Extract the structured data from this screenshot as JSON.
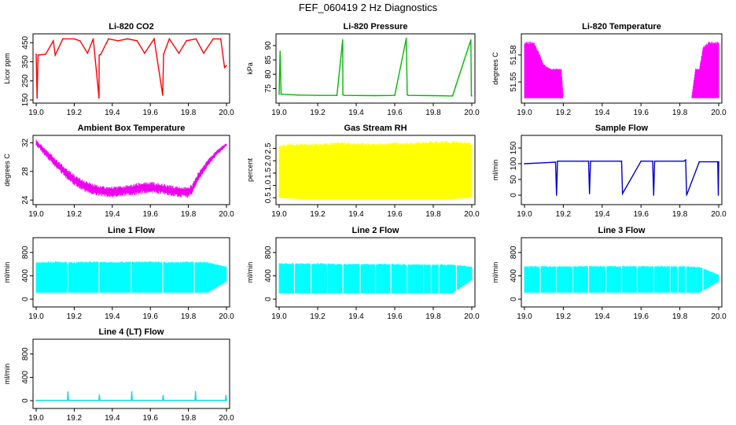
{
  "figure_title": "FEF_060419  2 Hz Diagnostics",
  "chart_data": [
    {
      "type": "line",
      "title": "Li-820 CO2",
      "xlabel": "",
      "ylabel": "Licor ppm",
      "xlim": [
        19.0,
        20.0
      ],
      "ylim": [
        150,
        480
      ],
      "xticks": [
        "19.0",
        "19.2",
        "19.4",
        "19.6",
        "19.8",
        "20.0"
      ],
      "yticks": [
        "150",
        "250",
        "350",
        "450"
      ],
      "color": "#ff0000",
      "x": [
        19.0,
        19.005,
        19.01,
        19.05,
        19.09,
        19.1,
        19.14,
        19.2,
        19.23,
        19.27,
        19.3,
        19.33,
        19.331,
        19.34,
        19.38,
        19.43,
        19.48,
        19.53,
        19.57,
        19.62,
        19.665,
        19.67,
        19.7,
        19.75,
        19.79,
        19.84,
        19.88,
        19.93,
        19.97,
        19.99,
        20.0
      ],
      "values": [
        390,
        160,
        385,
        390,
        460,
        385,
        470,
        470,
        460,
        395,
        470,
        160,
        385,
        390,
        470,
        460,
        470,
        460,
        395,
        470,
        175,
        390,
        470,
        395,
        460,
        470,
        395,
        470,
        470,
        320,
        330
      ]
    },
    {
      "type": "line",
      "title": "Li-820 Pressure",
      "xlabel": "",
      "ylabel": "kPa",
      "xlim": [
        19.0,
        20.0
      ],
      "ylim": [
        71,
        93
      ],
      "xticks": [
        "19.0",
        "19.2",
        "19.4",
        "19.6",
        "19.8",
        "20.0"
      ],
      "yticks": [
        "75",
        "80",
        "85",
        "90"
      ],
      "color": "#00bb00",
      "x": [
        19.0,
        19.005,
        19.01,
        19.1,
        19.2,
        19.3,
        19.33,
        19.331,
        19.34,
        19.5,
        19.6,
        19.66,
        19.665,
        19.67,
        19.8,
        19.9,
        19.995,
        19.998,
        20.0
      ],
      "values": [
        73,
        88,
        73,
        72.7,
        72.6,
        72.6,
        92,
        72.8,
        72.6,
        72.5,
        72.6,
        92.5,
        72.9,
        72.6,
        72.5,
        72.4,
        92,
        72.5,
        72.4
      ]
    },
    {
      "type": "area",
      "title": "Li-820 Temperature",
      "xlabel": "",
      "ylabel": "degrees C",
      "xlim": [
        19.0,
        20.0
      ],
      "ylim": [
        51.53,
        51.6
      ],
      "xticks": [
        "19.0",
        "19.2",
        "19.4",
        "19.6",
        "19.8",
        "20.0"
      ],
      "yticks": [
        "51.55",
        "51.58"
      ],
      "color": "#ff00ff",
      "x": [
        19.0,
        19.01,
        19.03,
        19.05,
        19.08,
        19.1,
        19.13,
        19.16,
        19.19,
        19.2,
        19.4,
        19.6,
        19.8,
        19.86,
        19.88,
        19.9,
        19.92,
        19.95,
        19.98,
        20.0
      ],
      "upper": [
        51.595,
        51.595,
        51.595,
        51.595,
        51.58,
        51.57,
        51.565,
        51.565,
        51.565,
        51.532,
        51.532,
        51.532,
        51.532,
        51.532,
        51.565,
        51.565,
        51.59,
        51.595,
        51.595,
        51.595
      ],
      "lower": [
        51.532,
        51.532,
        51.532,
        51.532,
        51.532,
        51.532,
        51.532,
        51.532,
        51.532,
        51.532,
        51.532,
        51.532,
        51.532,
        51.532,
        51.532,
        51.532,
        51.532,
        51.532,
        51.532,
        51.532
      ]
    },
    {
      "type": "line",
      "title": "Ambient Box Temperature",
      "xlabel": "",
      "ylabel": "degrees C",
      "xlim": [
        19.0,
        20.0
      ],
      "ylim": [
        23.8,
        32.6
      ],
      "xticks": [
        "19.0",
        "19.2",
        "19.4",
        "19.6",
        "19.8",
        "20.0"
      ],
      "yticks": [
        "24",
        "28",
        "32"
      ],
      "color": "#ee00ee",
      "x": [
        19.0,
        19.05,
        19.1,
        19.15,
        19.2,
        19.25,
        19.3,
        19.35,
        19.4,
        19.45,
        19.5,
        19.55,
        19.6,
        19.65,
        19.7,
        19.75,
        19.8,
        19.82,
        19.85,
        19.9,
        19.95,
        20.0
      ],
      "upper": [
        32.5,
        31.2,
        29.9,
        28.7,
        27.6,
        26.8,
        26.3,
        26.0,
        25.9,
        26.0,
        26.2,
        26.5,
        26.6,
        26.4,
        26.1,
        25.9,
        25.9,
        26.3,
        27.8,
        29.6,
        31.0,
        32.0
      ],
      "lower": [
        31.6,
        30.0,
        28.6,
        27.2,
        26.0,
        25.2,
        24.7,
        24.5,
        24.4,
        24.5,
        24.6,
        24.8,
        24.9,
        24.8,
        24.6,
        24.4,
        24.3,
        24.8,
        26.5,
        28.6,
        30.3,
        31.5
      ]
    },
    {
      "type": "area",
      "title": "Gas Stream RH",
      "xlabel": "",
      "ylabel": "percent",
      "xlim": [
        19.0,
        20.0
      ],
      "ylim": [
        0.35,
        2.9
      ],
      "xticks": [
        "19.0",
        "19.2",
        "19.4",
        "19.6",
        "19.8",
        "20.0"
      ],
      "yticks": [
        "0.5",
        "1.0",
        "1.5",
        "2.0",
        "2.5"
      ],
      "color": "#ffff00",
      "x": [
        19.0,
        19.1,
        19.2,
        19.3,
        19.4,
        19.5,
        19.6,
        19.7,
        19.8,
        19.9,
        20.0
      ],
      "upper": [
        2.65,
        2.7,
        2.7,
        2.75,
        2.75,
        2.7,
        2.75,
        2.75,
        2.8,
        2.8,
        2.75
      ],
      "lower": [
        0.5,
        0.45,
        0.45,
        0.45,
        0.45,
        0.45,
        0.45,
        0.45,
        0.45,
        0.45,
        0.5
      ]
    },
    {
      "type": "line",
      "title": "Sample Flow",
      "xlabel": "",
      "ylabel": "ml/min",
      "xlim": [
        19.0,
        20.0
      ],
      "ylim": [
        -20,
        180
      ],
      "xticks": [
        "19.0",
        "19.2",
        "19.4",
        "19.6",
        "19.8",
        "20.0"
      ],
      "yticks": [
        "0",
        "50",
        "100",
        "150"
      ],
      "color": "#0000cc",
      "x": [
        19.0,
        19.1,
        19.16,
        19.165,
        19.17,
        19.3,
        19.33,
        19.335,
        19.34,
        19.49,
        19.5,
        19.505,
        19.6,
        19.66,
        19.665,
        19.67,
        19.82,
        19.83,
        19.835,
        19.9,
        19.995,
        19.998,
        20.0
      ],
      "values": [
        100,
        103,
        105,
        0,
        108,
        108,
        108,
        5,
        108,
        108,
        108,
        5,
        108,
        108,
        0,
        108,
        108,
        112,
        0,
        106,
        106,
        0,
        106
      ]
    },
    {
      "type": "area",
      "title": "Line 1 Flow",
      "xlabel": "",
      "ylabel": "ml/min",
      "xlim": [
        19.0,
        20.0
      ],
      "ylim": [
        -80,
        1000
      ],
      "xticks": [
        "19.0",
        "19.2",
        "19.4",
        "19.6",
        "19.8",
        "20.0"
      ],
      "yticks": [
        "0",
        "400",
        "800"
      ],
      "color": "#00ffff",
      "x": [
        19.0,
        19.1,
        19.2,
        19.3,
        19.4,
        19.5,
        19.6,
        19.7,
        19.8,
        19.9,
        20.0
      ],
      "upper": [
        640,
        650,
        640,
        650,
        640,
        650,
        650,
        640,
        650,
        640,
        560
      ],
      "lower": [
        110,
        110,
        110,
        110,
        110,
        110,
        110,
        110,
        110,
        110,
        300
      ],
      "gaps": [
        19.165,
        19.33,
        19.5,
        19.665,
        19.83
      ]
    },
    {
      "type": "area",
      "title": "Line 2 Flow",
      "xlabel": "",
      "ylabel": "ml/min",
      "xlim": [
        19.0,
        20.0
      ],
      "ylim": [
        -80,
        1000
      ],
      "xticks": [
        "19.0",
        "19.2",
        "19.4",
        "19.6",
        "19.8",
        "20.0"
      ],
      "yticks": [
        "0",
        "400",
        "800"
      ],
      "color": "#00ffff",
      "x": [
        19.0,
        19.1,
        19.2,
        19.3,
        19.4,
        19.5,
        19.6,
        19.7,
        19.8,
        19.9,
        20.0
      ],
      "upper": [
        620,
        620,
        620,
        610,
        610,
        610,
        610,
        600,
        600,
        600,
        560
      ],
      "lower": [
        100,
        100,
        100,
        100,
        100,
        100,
        100,
        100,
        100,
        100,
        330
      ],
      "gaps": [
        19.08,
        19.165,
        19.25,
        19.33,
        19.42,
        19.5,
        19.58,
        19.665,
        19.75,
        19.79,
        19.83,
        19.92
      ]
    },
    {
      "type": "area",
      "title": "Line 3 Flow",
      "xlabel": "",
      "ylabel": "ml/min",
      "xlim": [
        19.0,
        20.0
      ],
      "ylim": [
        -80,
        1000
      ],
      "xticks": [
        "19.0",
        "19.2",
        "19.4",
        "19.6",
        "19.8",
        "20.0"
      ],
      "yticks": [
        "0",
        "400",
        "800"
      ],
      "color": "#00ffff",
      "x": [
        19.0,
        19.1,
        19.2,
        19.3,
        19.4,
        19.5,
        19.6,
        19.7,
        19.8,
        19.9,
        20.0
      ],
      "upper": [
        570,
        570,
        570,
        570,
        570,
        570,
        570,
        570,
        570,
        560,
        420
      ],
      "lower": [
        110,
        110,
        110,
        110,
        110,
        110,
        110,
        110,
        110,
        110,
        300
      ],
      "gaps": [
        19.08,
        19.165,
        19.25,
        19.33,
        19.42,
        19.5,
        19.58,
        19.665,
        19.75,
        19.79,
        19.83,
        19.92
      ]
    },
    {
      "type": "line",
      "title": "Line 4 (LT) Flow",
      "xlabel": "",
      "ylabel": "ml/min",
      "xlim": [
        19.0,
        20.0
      ],
      "ylim": [
        -80,
        1000
      ],
      "xticks": [
        "19.0",
        "19.2",
        "19.4",
        "19.6",
        "19.8",
        "20.0"
      ],
      "yticks": [
        "0",
        "400",
        "800"
      ],
      "color": "#00dddd",
      "x": [
        19.0,
        19.165,
        19.167,
        19.17,
        19.33,
        19.332,
        19.335,
        19.5,
        19.502,
        19.505,
        19.665,
        19.667,
        19.67,
        19.835,
        19.837,
        19.84,
        19.995,
        19.997,
        20.0
      ],
      "values": [
        5,
        5,
        150,
        5,
        5,
        95,
        5,
        5,
        150,
        5,
        5,
        90,
        5,
        5,
        155,
        5,
        5,
        90,
        5
      ]
    }
  ]
}
